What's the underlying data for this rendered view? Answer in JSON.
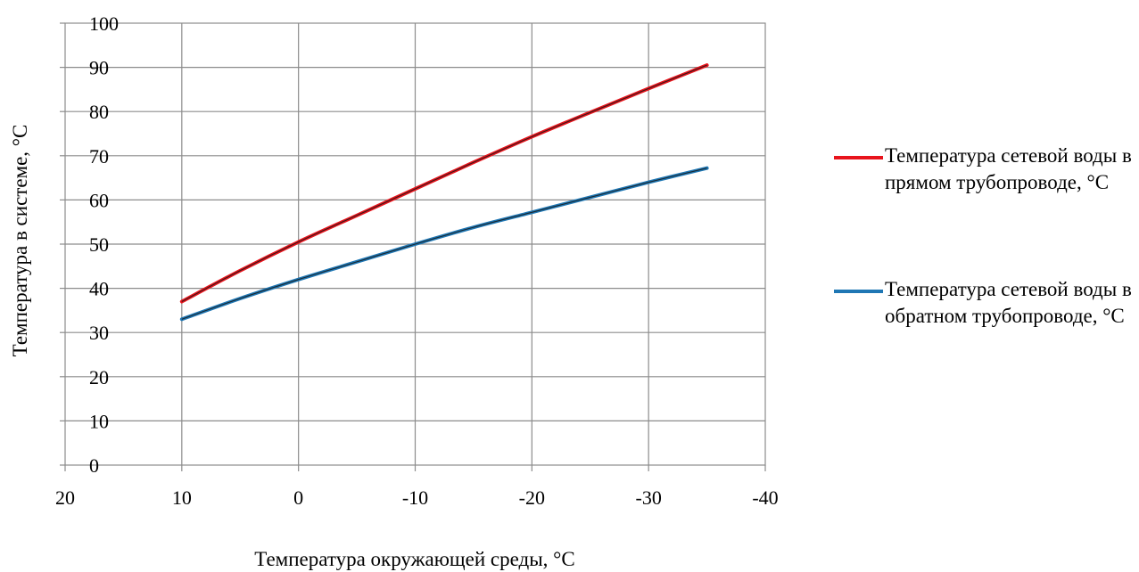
{
  "chart_data": {
    "type": "line",
    "title": "",
    "xlabel": "Температура окружающей среды, °С",
    "ylabel": "Температура в системе, °С",
    "xlim": [
      20,
      -40
    ],
    "ylim": [
      0,
      100
    ],
    "x_ticks": [
      "20",
      "10",
      "0",
      "-10",
      "-20",
      "-30",
      "-40"
    ],
    "y_ticks": [
      "0",
      "10",
      "20",
      "30",
      "40",
      "50",
      "60",
      "70",
      "80",
      "90",
      "100"
    ],
    "grid": true,
    "legend_position": "right",
    "x": [
      10,
      5,
      0,
      -5,
      -10,
      -15,
      -20,
      -25,
      -30,
      -35
    ],
    "series": [
      {
        "name": "Температура сетевой воды в прямом трубопроводе, °С",
        "color": "#e8141c",
        "values": [
          37,
          44,
          50.5,
          56.5,
          62.5,
          68.5,
          74.3,
          79.8,
          85.2,
          90.5
        ]
      },
      {
        "name": "Температура сетевой воды в обратном трубопроводе, °С",
        "color": "#1f77b4",
        "values": [
          33,
          37.7,
          42,
          46,
          50,
          53.8,
          57.2,
          60.6,
          64,
          67.2
        ]
      }
    ]
  }
}
